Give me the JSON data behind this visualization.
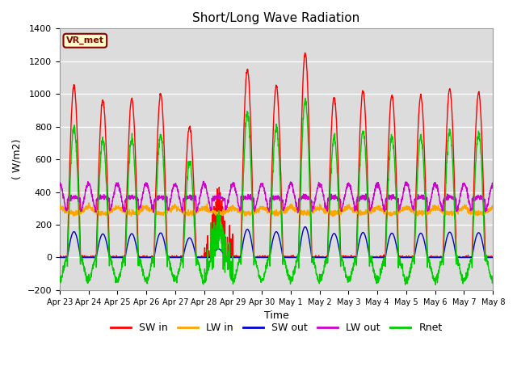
{
  "title": "Short/Long Wave Radiation",
  "xlabel": "Time",
  "ylabel": "( W/m2)",
  "ylim": [
    -200,
    1400
  ],
  "xlim": [
    0,
    15
  ],
  "background_color": "#dcdcdc",
  "grid_color": "white",
  "annotation_text": "VR_met",
  "annotation_bg": "#ffffcc",
  "annotation_border": "#8b0000",
  "x_ticks": [
    0,
    1,
    2,
    3,
    4,
    5,
    6,
    7,
    8,
    9,
    10,
    11,
    12,
    13,
    14,
    15
  ],
  "x_labels": [
    "Apr 23",
    "Apr 24",
    "Apr 25",
    "Apr 26",
    "Apr 27",
    "Apr 28",
    "Apr 29",
    "Apr 30",
    "May 1",
    "May 2",
    "May 3",
    "May 4",
    "May 5",
    "May 6",
    "May 7",
    "May 8"
  ],
  "legend_entries": [
    "SW in",
    "LW in",
    "SW out",
    "LW out",
    "Rnet"
  ],
  "colors": {
    "SW_in": "#ff0000",
    "LW_in": "#ffa500",
    "SW_out": "#0000cc",
    "LW_out": "#cc00cc",
    "Rnet": "#00cc00"
  }
}
